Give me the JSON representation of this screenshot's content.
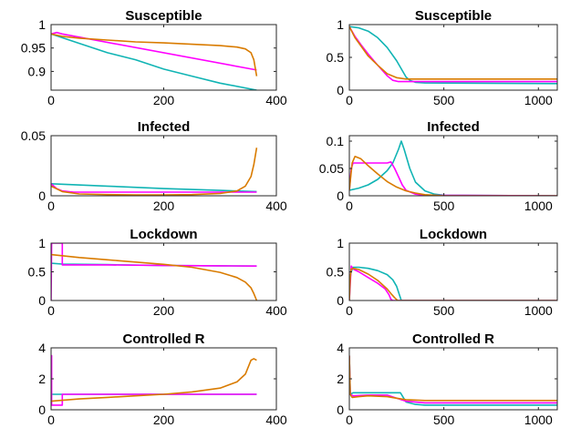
{
  "series_colors": [
    "#10b4b4",
    "#ff00ff",
    "#d97b00"
  ],
  "chart_data": [
    {
      "type": "line",
      "title": "Susceptible",
      "xlim": [
        0,
        400
      ],
      "ylim": [
        0.86,
        1.0
      ],
      "xticks": [
        0,
        200,
        400
      ],
      "xtick_labels": [
        "0",
        "200",
        "400"
      ],
      "yticks": [
        1.0,
        0.95,
        0.9
      ],
      "ytick_labels": [
        "1",
        "0.95",
        "0.9"
      ],
      "series": [
        {
          "color": "#10b4b4",
          "x": [
            0,
            50,
            100,
            150,
            200,
            250,
            300,
            365
          ],
          "y": [
            0.98,
            0.96,
            0.94,
            0.925,
            0.905,
            0.89,
            0.875,
            0.86
          ]
        },
        {
          "color": "#ff00ff",
          "x": [
            0,
            10,
            20,
            365
          ],
          "y": [
            0.98,
            0.983,
            0.98,
            0.903
          ]
        },
        {
          "color": "#d97b00",
          "x": [
            0,
            20,
            50,
            100,
            150,
            200,
            250,
            300,
            330,
            345,
            355,
            360,
            365
          ],
          "y": [
            0.98,
            0.975,
            0.971,
            0.967,
            0.963,
            0.961,
            0.958,
            0.955,
            0.952,
            0.948,
            0.94,
            0.925,
            0.89
          ]
        }
      ]
    },
    {
      "type": "line",
      "title": "Susceptible",
      "xlim": [
        0,
        1100
      ],
      "ylim": [
        0,
        1.0
      ],
      "xticks": [
        0,
        500,
        1000
      ],
      "xtick_labels": [
        "0",
        "500",
        "1000"
      ],
      "yticks": [
        1.0,
        0.5,
        0.0
      ],
      "ytick_labels": [
        "1",
        "0.5",
        "0"
      ],
      "series": [
        {
          "color": "#10b4b4",
          "x": [
            0,
            50,
            100,
            150,
            200,
            250,
            280,
            300,
            320,
            350,
            400,
            1100
          ],
          "y": [
            0.97,
            0.95,
            0.9,
            0.8,
            0.65,
            0.45,
            0.3,
            0.2,
            0.15,
            0.12,
            0.11,
            0.1
          ]
        },
        {
          "color": "#ff00ff",
          "x": [
            0,
            30,
            60,
            100,
            150,
            200,
            230,
            260,
            300,
            1100
          ],
          "y": [
            0.97,
            0.82,
            0.7,
            0.55,
            0.38,
            0.22,
            0.15,
            0.13,
            0.13,
            0.13
          ]
        },
        {
          "color": "#d97b00",
          "x": [
            0,
            30,
            60,
            100,
            150,
            200,
            250,
            300,
            350,
            1100
          ],
          "y": [
            0.97,
            0.8,
            0.68,
            0.52,
            0.38,
            0.25,
            0.19,
            0.17,
            0.17,
            0.17
          ]
        }
      ]
    },
    {
      "type": "line",
      "title": "Infected",
      "xlim": [
        0,
        400
      ],
      "ylim": [
        0,
        0.05
      ],
      "xticks": [
        0,
        200,
        400
      ],
      "xtick_labels": [
        "0",
        "200",
        "400"
      ],
      "yticks": [
        0.05,
        0.0
      ],
      "ytick_labels": [
        "0.05",
        "0"
      ],
      "series": [
        {
          "color": "#10b4b4",
          "x": [
            0,
            100,
            200,
            300,
            365
          ],
          "y": [
            0.01,
            0.008,
            0.006,
            0.0045,
            0.0035
          ]
        },
        {
          "color": "#ff00ff",
          "x": [
            0,
            10,
            20,
            40,
            80,
            365
          ],
          "y": [
            0.01,
            0.006,
            0.004,
            0.003,
            0.003,
            0.003
          ]
        },
        {
          "color": "#d97b00",
          "x": [
            0,
            20,
            50,
            100,
            150,
            200,
            250,
            300,
            330,
            345,
            355,
            360,
            365
          ],
          "y": [
            0.008,
            0.0035,
            0.0015,
            0.001,
            0.0007,
            0.0007,
            0.001,
            0.002,
            0.004,
            0.008,
            0.016,
            0.026,
            0.04
          ]
        }
      ]
    },
    {
      "type": "line",
      "title": "Infected",
      "xlim": [
        0,
        1100
      ],
      "ylim": [
        0,
        0.11
      ],
      "xticks": [
        0,
        500,
        1000
      ],
      "xtick_labels": [
        "0",
        "500",
        "1000"
      ],
      "yticks": [
        0.1,
        0.05,
        0.0
      ],
      "ytick_labels": [
        "0.1",
        "0.05",
        "0"
      ],
      "series": [
        {
          "color": "#10b4b4",
          "x": [
            0,
            50,
            100,
            150,
            200,
            230,
            260,
            275,
            290,
            320,
            350,
            400,
            450,
            500,
            1100
          ],
          "y": [
            0.01,
            0.014,
            0.02,
            0.03,
            0.046,
            0.06,
            0.085,
            0.1,
            0.085,
            0.05,
            0.025,
            0.009,
            0.003,
            0.001,
            0.0
          ]
        },
        {
          "color": "#ff00ff",
          "x": [
            0,
            10,
            20,
            100,
            150,
            200,
            220,
            240,
            260,
            280,
            300,
            350,
            400,
            1100
          ],
          "y": [
            0.01,
            0.05,
            0.06,
            0.06,
            0.06,
            0.06,
            0.062,
            0.05,
            0.035,
            0.02,
            0.01,
            0.003,
            0.001,
            0.0
          ]
        },
        {
          "color": "#d97b00",
          "x": [
            0,
            15,
            30,
            60,
            100,
            150,
            200,
            250,
            300,
            350,
            400,
            450,
            500,
            1100
          ],
          "y": [
            0.01,
            0.06,
            0.072,
            0.068,
            0.055,
            0.04,
            0.026,
            0.016,
            0.009,
            0.005,
            0.002,
            0.001,
            0.0,
            0.0
          ]
        }
      ]
    },
    {
      "type": "line",
      "title": "Lockdown",
      "xlim": [
        0,
        400
      ],
      "ylim": [
        0,
        1.0
      ],
      "xticks": [
        0,
        200,
        400
      ],
      "xtick_labels": [
        "0",
        "200",
        "400"
      ],
      "yticks": [
        1.0,
        0.5,
        0.0
      ],
      "ytick_labels": [
        "1",
        "0.5",
        "0"
      ],
      "series": [
        {
          "color": "#10b4b4",
          "x": [
            0,
            20,
            100,
            200,
            300,
            365
          ],
          "y": [
            0.65,
            0.635,
            0.625,
            0.61,
            0.605,
            0.6
          ]
        },
        {
          "color": "#ff00ff",
          "x": [
            0,
            1,
            20,
            20,
            100,
            200,
            300,
            365
          ],
          "y": [
            0.0,
            1.0,
            1.0,
            0.62,
            0.62,
            0.61,
            0.605,
            0.6
          ]
        },
        {
          "color": "#d97b00",
          "x": [
            0,
            50,
            100,
            150,
            200,
            250,
            300,
            330,
            345,
            355,
            360,
            365
          ],
          "y": [
            0.8,
            0.75,
            0.71,
            0.67,
            0.63,
            0.58,
            0.49,
            0.4,
            0.32,
            0.22,
            0.12,
            0.0
          ]
        }
      ]
    },
    {
      "type": "line",
      "title": "Lockdown",
      "xlim": [
        0,
        1100
      ],
      "ylim": [
        0,
        1.0
      ],
      "xticks": [
        0,
        500,
        1000
      ],
      "xtick_labels": [
        "0",
        "500",
        "1000"
      ],
      "yticks": [
        1.0,
        0.5,
        0.0
      ],
      "ytick_labels": [
        "1",
        "0.5",
        "0"
      ],
      "series": [
        {
          "color": "#10b4b4",
          "x": [
            0,
            10,
            20,
            50,
            100,
            150,
            200,
            230,
            250,
            265,
            275,
            1100
          ],
          "y": [
            0.3,
            0.5,
            0.58,
            0.58,
            0.56,
            0.52,
            0.45,
            0.36,
            0.25,
            0.1,
            0.0,
            0.0
          ]
        },
        {
          "color": "#ff00ff",
          "x": [
            0,
            10,
            20,
            50,
            100,
            150,
            190,
            210,
            220,
            230,
            1100
          ],
          "y": [
            0.0,
            0.6,
            0.55,
            0.5,
            0.4,
            0.3,
            0.2,
            0.1,
            0.02,
            0.0,
            0.0
          ]
        },
        {
          "color": "#d97b00",
          "x": [
            0,
            5,
            10,
            20,
            50,
            100,
            150,
            200,
            220,
            240,
            255,
            1100
          ],
          "y": [
            0.0,
            0.4,
            0.55,
            0.56,
            0.54,
            0.46,
            0.35,
            0.2,
            0.12,
            0.05,
            0.0,
            0.0
          ]
        }
      ]
    },
    {
      "type": "line",
      "title": "Controlled R",
      "xlim": [
        0,
        400
      ],
      "ylim": [
        0,
        4
      ],
      "xticks": [
        0,
        200,
        400
      ],
      "xtick_labels": [
        "0",
        "200",
        "400"
      ],
      "yticks": [
        4,
        2,
        0
      ],
      "ytick_labels": [
        "4",
        "2",
        "0"
      ],
      "series": [
        {
          "color": "#10b4b4",
          "x": [
            0,
            100,
            200,
            300,
            365
          ],
          "y": [
            1.0,
            1.0,
            1.0,
            1.0,
            1.0
          ]
        },
        {
          "color": "#ff00ff",
          "x": [
            0,
            1,
            1,
            20,
            20,
            200,
            365
          ],
          "y": [
            3.5,
            3.5,
            0.3,
            0.3,
            1.0,
            1.0,
            1.0
          ]
        },
        {
          "color": "#d97b00",
          "x": [
            0,
            50,
            100,
            150,
            200,
            250,
            300,
            330,
            345,
            355,
            360,
            365
          ],
          "y": [
            0.55,
            0.7,
            0.8,
            0.9,
            1.0,
            1.15,
            1.4,
            1.8,
            2.3,
            3.2,
            3.3,
            3.2
          ]
        }
      ]
    },
    {
      "type": "line",
      "title": "Controlled R",
      "xlim": [
        0,
        1100
      ],
      "ylim": [
        0,
        4
      ],
      "xticks": [
        0,
        500,
        1000
      ],
      "xtick_labels": [
        "0",
        "500",
        "1000"
      ],
      "yticks": [
        4,
        2,
        0
      ],
      "ytick_labels": [
        "4",
        "2",
        "0"
      ],
      "series": [
        {
          "color": "#10b4b4",
          "x": [
            0,
            5,
            20,
            100,
            200,
            270,
            300,
            350,
            400,
            1100
          ],
          "y": [
            3.5,
            1.0,
            1.1,
            1.1,
            1.1,
            1.1,
            0.5,
            0.35,
            0.3,
            0.3
          ]
        },
        {
          "color": "#ff00ff",
          "x": [
            0,
            5,
            20,
            100,
            200,
            300,
            400,
            1100
          ],
          "y": [
            3.5,
            1.0,
            0.9,
            0.95,
            0.95,
            0.55,
            0.45,
            0.45
          ]
        },
        {
          "color": "#d97b00",
          "x": [
            0,
            5,
            15,
            50,
            100,
            200,
            250,
            300,
            400,
            1100
          ],
          "y": [
            3.5,
            1.0,
            0.8,
            0.85,
            0.9,
            0.85,
            0.75,
            0.65,
            0.6,
            0.6
          ]
        }
      ]
    }
  ]
}
